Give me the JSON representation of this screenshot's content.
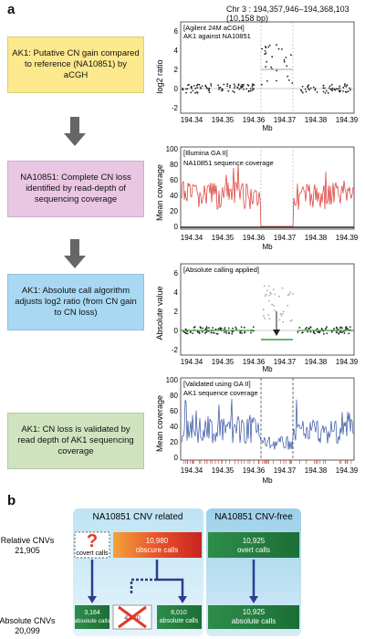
{
  "panel_a_label": "a",
  "panel_b_label": "b",
  "chr_header": "Chr 3 : 194,357,946–194,368,103 (10,158 bp)",
  "steps": [
    {
      "text": "AK1: Putative CN gain compared to reference (NA10851) by aCGH"
    },
    {
      "text": "NA10851: Complete CN loss identified by read-depth of sequencing coverage"
    },
    {
      "text": "AK1: Absolute call algorithm adjusts log2 ratio (from CN gain to CN loss)"
    },
    {
      "text": "AK1: CN loss is validated by read depth of AK1 sequencing coverage"
    }
  ],
  "plots": [
    {
      "ylabel": "log2 ratio",
      "xlabel": "Mb",
      "note1": "[Agilent 24M aCGH]",
      "note2": "AK1 against NA10851",
      "yticks": [
        "6",
        "4",
        "2",
        "0",
        "-2"
      ],
      "xticks": [
        "194.34",
        "194.35",
        "194.36",
        "194.37",
        "194.38",
        "194.39"
      ]
    },
    {
      "ylabel": "Mean coverage",
      "xlabel": "Mb",
      "note1": "[Illumina GA II]",
      "note2": "NA10851 sequence coverage",
      "yticks": [
        "100",
        "80",
        "60",
        "40",
        "20",
        "0"
      ],
      "xticks": [
        "194.34",
        "194.35",
        "194.36",
        "194.37",
        "194.38",
        "194.39"
      ]
    },
    {
      "ylabel": "Absolute value",
      "xlabel": "Mb",
      "note1": "[Absolute calling applied]",
      "note2": "",
      "yticks": [
        "6",
        "4",
        "2",
        "0",
        "-2"
      ],
      "xticks": [
        "194.34",
        "194.35",
        "194.36",
        "194.37",
        "194.38",
        "194.39"
      ]
    },
    {
      "ylabel": "Mean coverage",
      "xlabel": "Mb",
      "note1": "[Validated using GA II]",
      "note2": "AK1 sequence coverage",
      "yticks": [
        "100",
        "80",
        "60",
        "40",
        "20",
        "0"
      ],
      "xticks": [
        "194.34",
        "194.35",
        "194.36",
        "194.37",
        "194.38",
        "194.39"
      ]
    }
  ],
  "panel_b": {
    "col_related": "NA10851 CNV related",
    "col_free": "NA10851 CNV-free",
    "row_relative_label": "Relative CNVs",
    "row_relative_count": "21,905",
    "row_absolute_label": "Absolute CNVs",
    "row_absolute_count": "20,099",
    "covert_label": "covert calls",
    "question_mark": "?",
    "obscure_count": "10,980",
    "obscure_label": "obscure calls",
    "overt_count": "10,925",
    "overt_label": "overt calls",
    "abs1_count": "3,164",
    "abs1_label": "absolute calls",
    "removed_count": "4,970",
    "abs2_count": "6,010",
    "abs2_label": "absolute calls",
    "abs3_count": "10,925",
    "abs3_label": "absolute calls"
  }
}
